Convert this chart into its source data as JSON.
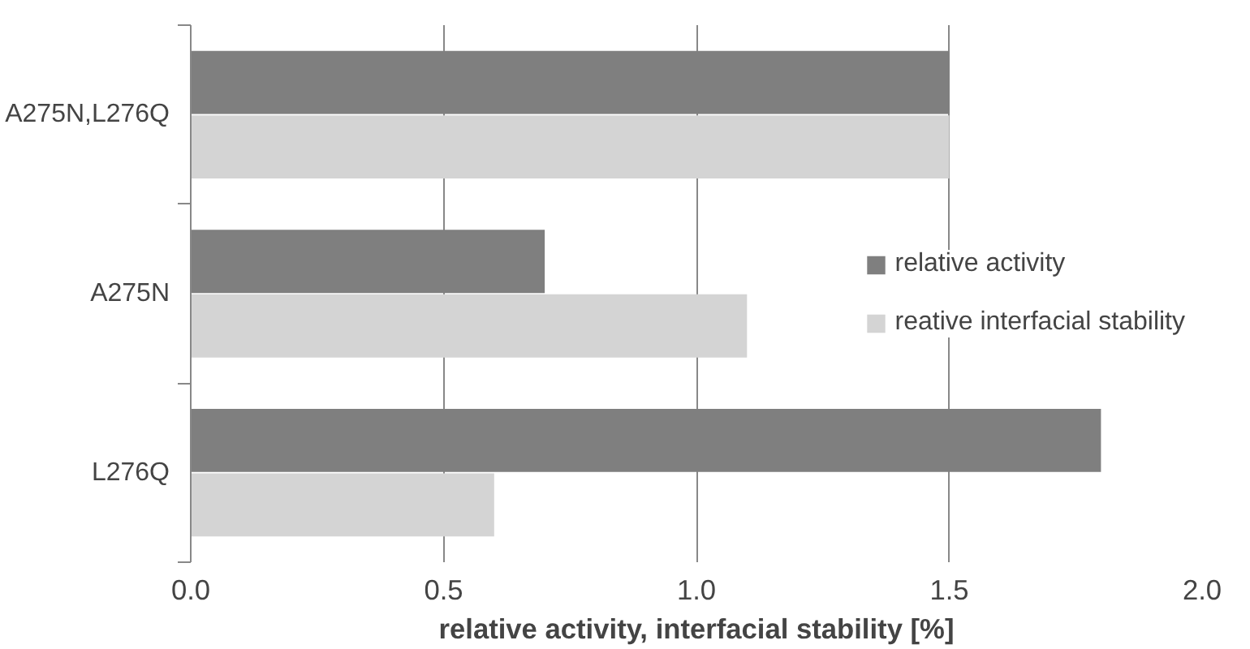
{
  "chart_data": {
    "type": "bar",
    "orientation": "horizontal",
    "xlabel": "relative activity, interfacial stability [%]",
    "categories": [
      "A275N,L276Q",
      "A275N",
      "L276Q"
    ],
    "series": [
      {
        "name": "relative activity",
        "color": "#7f7f7f",
        "values": [
          1.5,
          0.7,
          1.8
        ]
      },
      {
        "name": "reative interfacial stability",
        "color": "#d4d4d4",
        "values": [
          1.5,
          1.1,
          0.6
        ]
      }
    ],
    "xlim": [
      0,
      2
    ],
    "xticks": [
      {
        "value": 0,
        "label": "0.0"
      },
      {
        "value": 0.5,
        "label": "0.5"
      },
      {
        "value": 1,
        "label": "1.0"
      },
      {
        "value": 1.5,
        "label": "1.5"
      },
      {
        "value": 2,
        "label": "2.0"
      }
    ],
    "grid": "x",
    "legend": "right"
  }
}
